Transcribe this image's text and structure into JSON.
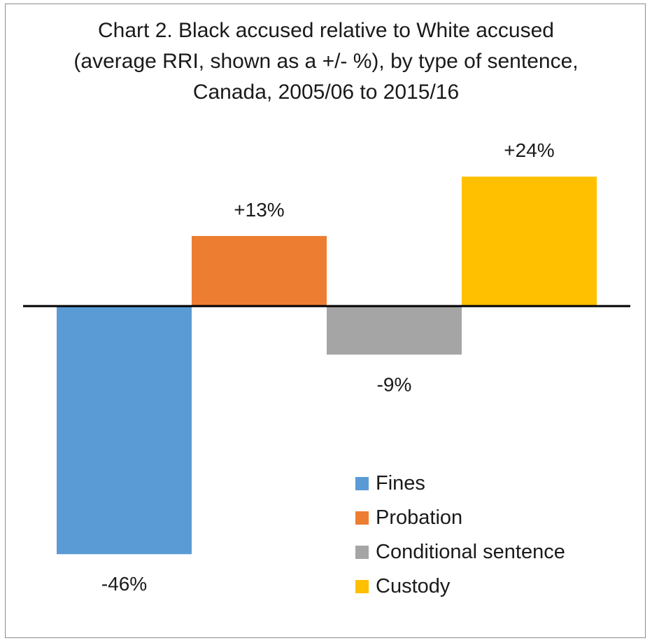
{
  "chart_data": {
    "type": "bar",
    "title": [
      "Chart 2. Black accused relative to White accused",
      "(average RRI, shown as a +/- %), by type of sentence,",
      "Canada, 2005/06 to 2015/16"
    ],
    "categories": [
      "Fines",
      "Probation",
      "Conditional sentence",
      "Custody"
    ],
    "values": [
      -46,
      13,
      -9,
      24
    ],
    "data_labels": [
      "-46%",
      "+13%",
      "-9%",
      "+24%"
    ],
    "colors": [
      "#5b9bd5",
      "#ed7d31",
      "#a5a5a5",
      "#ffc000"
    ],
    "ylim": [
      -50,
      30
    ],
    "gridlines": false,
    "legend": {
      "position": "bottom-right",
      "entries": [
        "Fines",
        "Probation",
        "Conditional sentence",
        "Custody"
      ]
    }
  }
}
